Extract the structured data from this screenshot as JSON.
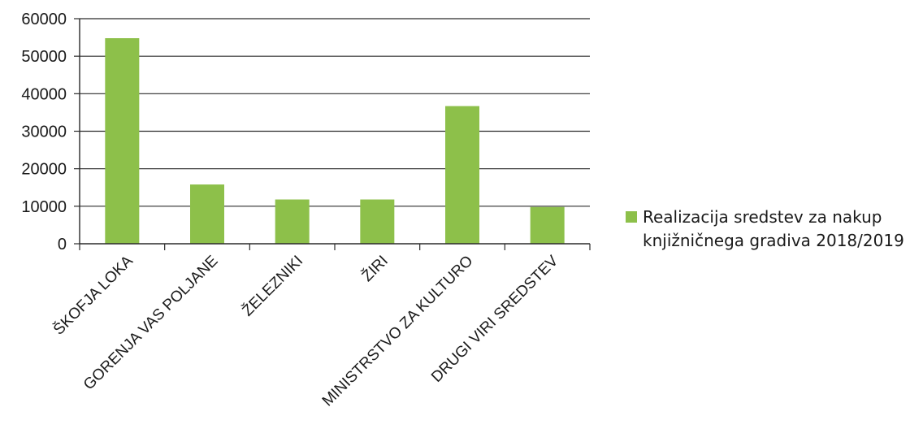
{
  "chart_data": {
    "type": "bar",
    "categories": [
      "ŠKOFJA LOKA",
      "GORENJA VAS POLJANE",
      "ŽELEZNIKI",
      "ŽIRI",
      "MINISTRSTVO ZA KULTURO",
      "DRUGI VIRI SREDSTEV"
    ],
    "series": [
      {
        "name": "Realizacija sredstev za nakup knjižničnega gradiva 2018/2019",
        "name_lines": [
          "Realizacija sredstev za nakup",
          "knjižničnega gradiva 2018/2019"
        ],
        "values": [
          54800,
          15800,
          11800,
          11800,
          36700,
          9800
        ],
        "color": "#8dc04a"
      }
    ],
    "ylim": [
      0,
      60000
    ],
    "yticks": [
      "0",
      "10000",
      "20000",
      "30000",
      "40000",
      "50000",
      "60000"
    ],
    "grid": true,
    "legend_position": "right",
    "title": "",
    "xlabel": "",
    "ylabel": ""
  }
}
